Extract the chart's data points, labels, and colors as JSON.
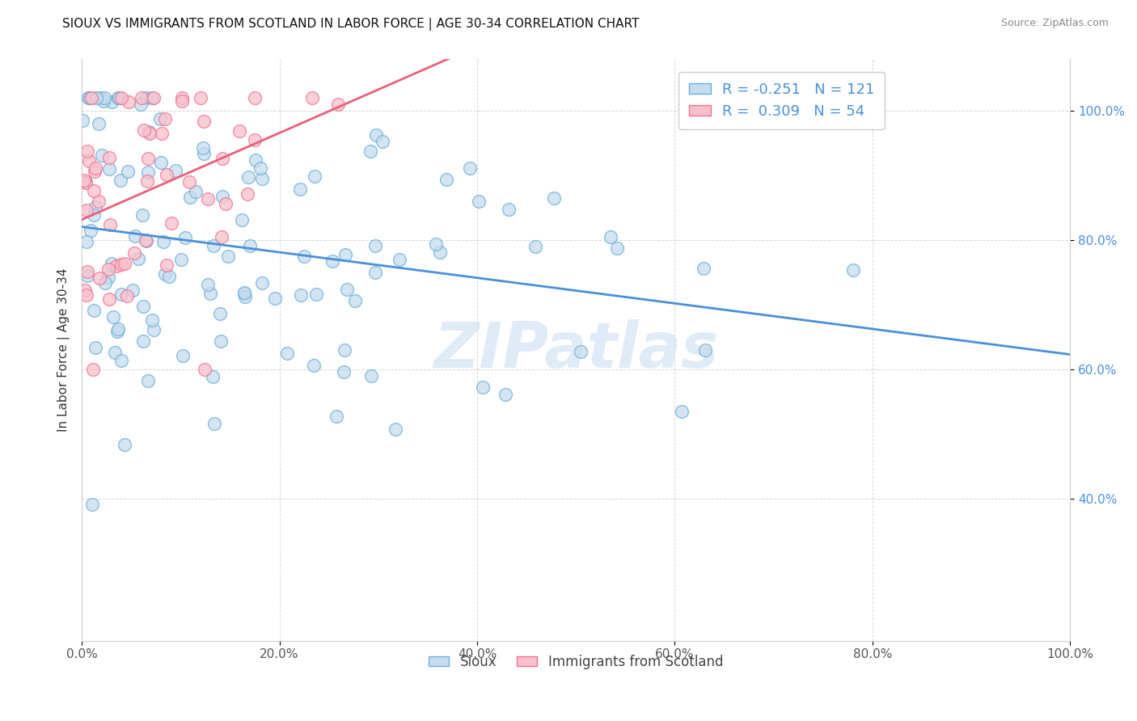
{
  "title": "SIOUX VS IMMIGRANTS FROM SCOTLAND IN LABOR FORCE | AGE 30-34 CORRELATION CHART",
  "source": "Source: ZipAtlas.com",
  "ylabel": "In Labor Force | Age 30-34",
  "sioux_R": -0.251,
  "sioux_N": 121,
  "scotland_R": 0.309,
  "scotland_N": 54,
  "sioux_color": "#c5dcf0",
  "scotland_color": "#f9c0cc",
  "sioux_edge_color": "#6aaed6",
  "scotland_edge_color": "#f07090",
  "sioux_line_color": "#4a90d9",
  "scotland_line_color": "#e8607a",
  "background_color": "#ffffff",
  "grid_color": "#cccccc",
  "watermark": "ZIPatlas",
  "xlim": [
    0.0,
    1.0
  ],
  "ylim": [
    0.18,
    1.08
  ],
  "x_tick_positions": [
    0.0,
    0.2,
    0.4,
    0.6,
    0.8,
    1.0
  ],
  "x_tick_labels": [
    "0.0%",
    "20.0%",
    "40.0%",
    "60.0%",
    "80.0%",
    "100.0%"
  ],
  "y_tick_positions": [
    0.4,
    0.6,
    0.8,
    1.0
  ],
  "y_tick_labels": [
    "40.0%",
    "60.0%",
    "80.0%",
    "100.0%"
  ],
  "legend1_label1": "R = -0.251   N = 121",
  "legend1_label2": "R =  0.309   N = 54",
  "legend2_label1": "Sioux",
  "legend2_label2": "Immigrants from Scotland",
  "title_fontsize": 11,
  "source_fontsize": 9,
  "tick_fontsize": 11,
  "ylabel_fontsize": 11
}
